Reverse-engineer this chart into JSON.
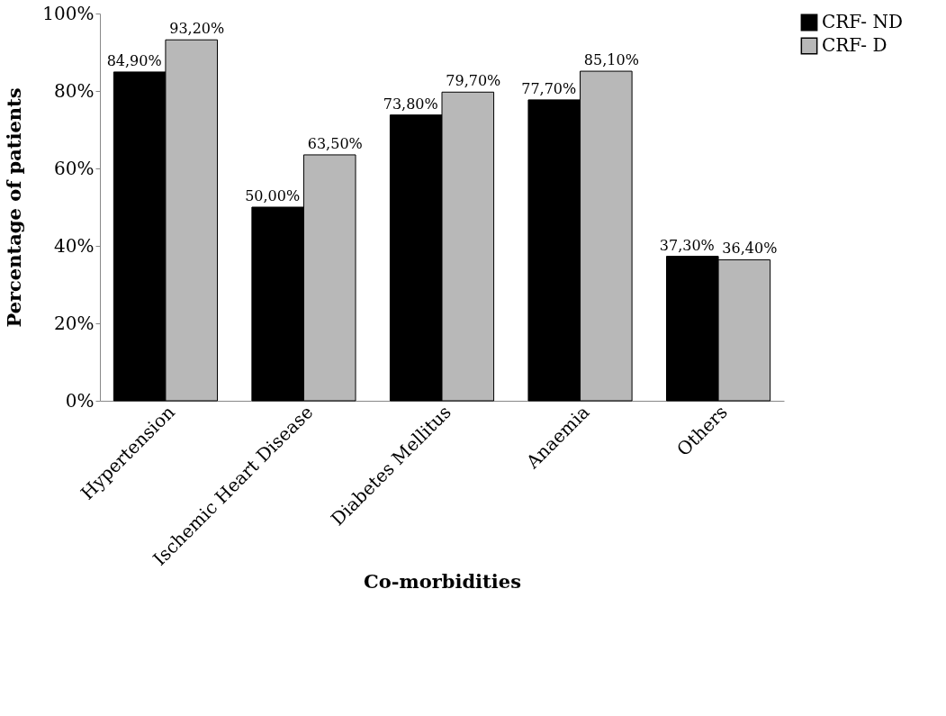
{
  "chart_data": {
    "type": "bar",
    "xlabel": "Co-morbidities",
    "ylabel": "Percentage of patients",
    "categories": [
      "Hypertension",
      "Ischemic Heart Disease",
      "Diabetes Mellitus",
      "Anaemia",
      "Others"
    ],
    "series": [
      {
        "name": "CRF- ND",
        "color": "#000000",
        "values": [
          84.9,
          50.0,
          73.8,
          77.7,
          37.3
        ],
        "value_labels": [
          "84,90%",
          "50,00%",
          "73,80%",
          "77,70%",
          "37,30%"
        ]
      },
      {
        "name": "CRF- D",
        "color": "#b8b8b8",
        "values": [
          93.2,
          63.5,
          79.7,
          85.1,
          36.4
        ],
        "value_labels": [
          "93,20%",
          "63,50%",
          "79,70%",
          "85,10%",
          "36,40%"
        ]
      }
    ],
    "ylim": [
      0,
      100
    ],
    "yticks": [
      {
        "value": 0,
        "label": "0%"
      },
      {
        "value": 20,
        "label": "20%"
      },
      {
        "value": 40,
        "label": "40%"
      },
      {
        "value": 60,
        "label": "60%"
      },
      {
        "value": 80,
        "label": "80%"
      },
      {
        "value": 100,
        "label": "100%"
      }
    ],
    "grid": false,
    "legend": "top right"
  }
}
